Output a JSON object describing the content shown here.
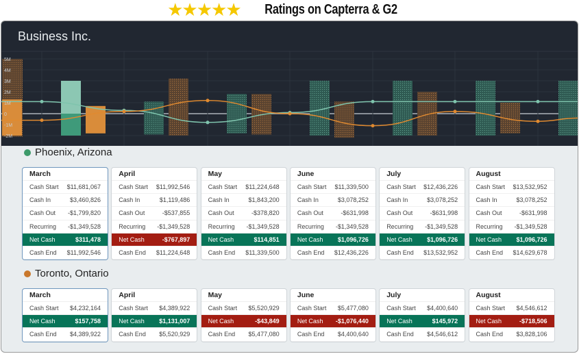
{
  "banner": {
    "stars": "★★★★★",
    "text": "Ratings on Capterra & G2"
  },
  "app": {
    "title": "Business Inc."
  },
  "chart_data": {
    "type": "bar",
    "title": "Business Inc.",
    "yticks": [
      "5M",
      "4M",
      "3M",
      "2M",
      "1M",
      "0",
      "-1M",
      "-2M"
    ],
    "ylim": [
      -2.2,
      5.5
    ],
    "cash_in_bars": [
      [
        3,
        -2
      ],
      [
        1.1,
        -1.9
      ],
      [
        1.8,
        -1.8
      ],
      [
        3,
        -2
      ],
      [
        3,
        -2
      ],
      [
        3,
        -2
      ],
      [
        3,
        -2
      ]
    ],
    "cash_out_bars": [
      [
        1.3,
        -2
      ],
      [
        0.7,
        -1.8
      ],
      [
        3.2,
        -2
      ],
      [
        1.8,
        -1.9
      ],
      [
        1.1,
        -2.2
      ],
      [
        2,
        -2
      ],
      [
        1,
        -1.8
      ]
    ],
    "teal_line": [
      1.1,
      0.3,
      -0.8,
      0.1,
      1.1,
      1.1,
      1.1
    ],
    "orange_line": [
      -0.6,
      0.2,
      1.2,
      0,
      -1.1,
      0.2,
      -0.7
    ],
    "colors": {
      "teal": "#7fc4ad",
      "orange": "#d98c3a"
    }
  },
  "locations": [
    {
      "name": "Phoenix, Arizona",
      "color": "#3d9a6a",
      "months": [
        {
          "m": "March",
          "rows": [
            [
              "Cash Start",
              "$11,681,067"
            ],
            [
              "Cash In",
              "$3,460,826"
            ],
            [
              "Cash Out",
              "-$1,799,820"
            ],
            [
              "Recurring",
              "-$1,349,528"
            ],
            [
              "Net Cash",
              "$311,478",
              "pos"
            ],
            [
              "Cash End",
              "$11,992,546"
            ]
          ]
        },
        {
          "m": "April",
          "rows": [
            [
              "Cash Start",
              "$11,992,546"
            ],
            [
              "Cash In",
              "$1,119,486"
            ],
            [
              "Cash Out",
              "-$537,855"
            ],
            [
              "Recurring",
              "-$1,349,528"
            ],
            [
              "Net Cash",
              "-$767,897",
              "neg"
            ],
            [
              "Cash End",
              "$11,224,648"
            ]
          ]
        },
        {
          "m": "May",
          "rows": [
            [
              "Cash Start",
              "$11,224,648"
            ],
            [
              "Cash In",
              "$1,843,200"
            ],
            [
              "Cash Out",
              "-$378,820"
            ],
            [
              "Recurring",
              "-$1,349,528"
            ],
            [
              "Net Cash",
              "$114,851",
              "pos"
            ],
            [
              "Cash End",
              "$11,339,500"
            ]
          ]
        },
        {
          "m": "June",
          "rows": [
            [
              "Cash Start",
              "$11,339,500"
            ],
            [
              "Cash In",
              "$3,078,252"
            ],
            [
              "Cash Out",
              "-$631,998"
            ],
            [
              "Recurring",
              "-$1,349,528"
            ],
            [
              "Net Cash",
              "$1,096,726",
              "pos"
            ],
            [
              "Cash End",
              "$12,436,226"
            ]
          ]
        },
        {
          "m": "July",
          "rows": [
            [
              "Cash Start",
              "$12,436,226"
            ],
            [
              "Cash In",
              "$3,078,252"
            ],
            [
              "Cash Out",
              "-$631,998"
            ],
            [
              "Recurring",
              "-$1,349,528"
            ],
            [
              "Net Cash",
              "$1,096,726",
              "pos"
            ],
            [
              "Cash End",
              "$13,532,952"
            ]
          ]
        },
        {
          "m": "August",
          "rows": [
            [
              "Cash Start",
              "$13,532,952"
            ],
            [
              "Cash In",
              "$3,078,252"
            ],
            [
              "Cash Out",
              "-$631,998"
            ],
            [
              "Recurring",
              "-$1,349,528"
            ],
            [
              "Net Cash",
              "$1,096,726",
              "pos"
            ],
            [
              "Cash End",
              "$14,629,678"
            ]
          ]
        }
      ]
    },
    {
      "name": "Toronto, Ontario",
      "color": "#c9782c",
      "months": [
        {
          "m": "March",
          "rows": [
            [
              "Cash Start",
              "$4,232,164"
            ],
            [
              "Net Cash",
              "$157,758",
              "pos"
            ],
            [
              "Cash End",
              "$4,389,922"
            ]
          ]
        },
        {
          "m": "April",
          "rows": [
            [
              "Cash Start",
              "$4,389,922"
            ],
            [
              "Net Cash",
              "$1,131,007",
              "pos"
            ],
            [
              "Cash End",
              "$5,520,929"
            ]
          ]
        },
        {
          "m": "May",
          "rows": [
            [
              "Cash Start",
              "$5,520,929"
            ],
            [
              "Net Cash",
              "-$43,849",
              "neg"
            ],
            [
              "Cash End",
              "$5,477,080"
            ]
          ]
        },
        {
          "m": "June",
          "rows": [
            [
              "Cash Start",
              "$5,477,080"
            ],
            [
              "Net Cash",
              "-$1,076,440",
              "neg"
            ],
            [
              "Cash End",
              "$4,400,640"
            ]
          ]
        },
        {
          "m": "July",
          "rows": [
            [
              "Cash Start",
              "$4,400,640"
            ],
            [
              "Net Cash",
              "$145,972",
              "pos"
            ],
            [
              "Cash End",
              "$4,546,612"
            ]
          ]
        },
        {
          "m": "August",
          "rows": [
            [
              "Cash Start",
              "$4,546,612"
            ],
            [
              "Net Cash",
              "-$718,506",
              "neg"
            ],
            [
              "Cash End",
              "$3,828,106"
            ]
          ]
        }
      ]
    }
  ]
}
